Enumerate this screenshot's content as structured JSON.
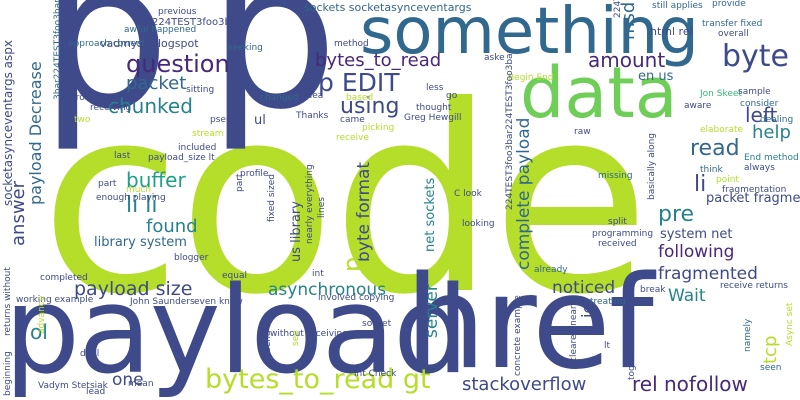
{
  "cloud": {
    "colors": {
      "lime": "#b5de2b",
      "indigo": "#3e4a89",
      "teal": "#31688e",
      "sea": "#26828e",
      "green": "#1f9e89",
      "bright": "#6ece58",
      "violet": "#482878",
      "grey": "#35b779"
    },
    "words": [
      {
        "text": "code"
      },
      {
        "text": "payload"
      },
      {
        "text": "href"
      },
      {
        "text": "p"
      },
      {
        "text": "p"
      },
      {
        "text": "something"
      },
      {
        "text": "data"
      },
      {
        "text": "bytes_to_read gt"
      },
      {
        "text": "byte"
      },
      {
        "text": "question"
      },
      {
        "text": "bytes_to_read"
      },
      {
        "text": "p EDIT"
      },
      {
        "text": "packet"
      },
      {
        "text": "amount"
      },
      {
        "text": "using"
      },
      {
        "text": "chunked"
      },
      {
        "text": "read"
      },
      {
        "text": "left"
      },
      {
        "text": "help"
      },
      {
        "text": "li"
      },
      {
        "text": "buffer"
      },
      {
        "text": "li li"
      },
      {
        "text": "found"
      },
      {
        "text": "pre"
      },
      {
        "text": "following"
      },
      {
        "text": "fragmented"
      },
      {
        "text": "Wait"
      },
      {
        "text": "payload size"
      },
      {
        "text": "asynchronous"
      },
      {
        "text": "noticed"
      },
      {
        "text": "stackoverflow"
      },
      {
        "text": "rel nofollow"
      },
      {
        "text": "one"
      },
      {
        "text": "ol"
      },
      {
        "text": "answer"
      },
      {
        "text": "payload Decrease"
      },
      {
        "text": "complete payload"
      },
      {
        "text": "byte format"
      },
      {
        "text": "server"
      },
      {
        "text": "tcp"
      },
      {
        "text": "ie"
      },
      {
        "text": "msdn microsoft"
      },
      {
        "text": "library system"
      },
      {
        "text": "system net"
      },
      {
        "text": "packet fragmentation"
      },
      {
        "text": "en us"
      },
      {
        "text": "ul"
      },
      {
        "text": "html rel"
      },
      {
        "text": "sockets socketasynceventargs"
      },
      {
        "text": "vadmyst blogspot"
      },
      {
        "text": "224TEST3foo3bar"
      },
      {
        "text": "awful happened"
      },
      {
        "text": "previous"
      },
      {
        "text": "socketasynceventargs aspx"
      },
      {
        "text": "us library"
      },
      {
        "text": "net sockets"
      },
      {
        "text": "224TEST3foo3bar224TEST3foo3bar"
      },
      {
        "text": "224TEST3foo3bar224TEST3foo"
      },
      {
        "text": "still applies"
      },
      {
        "text": "provide"
      },
      {
        "text": "transfer fixed"
      },
      {
        "text": "overall"
      },
      {
        "text": "receive returns"
      },
      {
        "text": "Jon Skeet"
      },
      {
        "text": "sample"
      },
      {
        "text": "consider"
      },
      {
        "text": "dealing"
      },
      {
        "text": "elaborate"
      },
      {
        "text": "End method"
      },
      {
        "text": "always"
      },
      {
        "text": "point"
      },
      {
        "text": "fragmentation"
      },
      {
        "text": "think"
      },
      {
        "text": "basically along"
      },
      {
        "text": "missing"
      },
      {
        "text": "C look"
      },
      {
        "text": "looking"
      },
      {
        "text": "split"
      },
      {
        "text": "programming"
      },
      {
        "text": "received"
      },
      {
        "text": "already"
      },
      {
        "text": "break"
      },
      {
        "text": "treating"
      },
      {
        "text": "concrete example"
      },
      {
        "text": "cleared nearly"
      },
      {
        "text": "lt"
      },
      {
        "text": "together"
      },
      {
        "text": "namely"
      },
      {
        "text": "seen"
      },
      {
        "text": "Async set"
      },
      {
        "text": "Begin End"
      },
      {
        "text": "aware"
      },
      {
        "text": "raw"
      },
      {
        "text": "receive"
      },
      {
        "text": "picking"
      },
      {
        "text": "thought"
      },
      {
        "text": "less"
      },
      {
        "text": "go"
      },
      {
        "text": "based"
      },
      {
        "text": "Greg Hewgill"
      },
      {
        "text": "came"
      },
      {
        "text": "Thanks"
      },
      {
        "text": "idea"
      },
      {
        "text": "changed"
      },
      {
        "text": "sitting"
      },
      {
        "text": "pseudo"
      },
      {
        "text": "stream"
      },
      {
        "text": "included"
      },
      {
        "text": "last"
      },
      {
        "text": "payload_size lt"
      },
      {
        "text": "profile"
      },
      {
        "text": "fixed sized"
      },
      {
        "text": "nearly everything"
      },
      {
        "text": "lines"
      },
      {
        "text": "part"
      },
      {
        "text": "much"
      },
      {
        "text": "enough playing"
      },
      {
        "text": "blogger"
      },
      {
        "text": "equal"
      },
      {
        "text": "int"
      },
      {
        "text": "involved copying"
      },
      {
        "text": "John Saunders"
      },
      {
        "text": "even know"
      },
      {
        "text": "send"
      },
      {
        "text": "without receiving"
      },
      {
        "text": "see"
      },
      {
        "text": "socket"
      },
      {
        "text": "int Check"
      },
      {
        "text": "deal"
      },
      {
        "text": "mean"
      },
      {
        "text": "lead"
      },
      {
        "text": "Vadym Stetsiak"
      },
      {
        "text": "beginning"
      },
      {
        "text": "returns without"
      },
      {
        "text": "working example"
      },
      {
        "text": "advance"
      },
      {
        "text": "completed"
      },
      {
        "text": "brought"
      },
      {
        "text": "receiving"
      },
      {
        "text": "two"
      },
      {
        "text": "3bar224TEST3foo3bar"
      },
      {
        "text": "approach correct"
      },
      {
        "text": "seeking"
      },
      {
        "text": "method"
      },
      {
        "text": "aske"
      },
      {
        "text": "sometimes"
      }
    ]
  }
}
